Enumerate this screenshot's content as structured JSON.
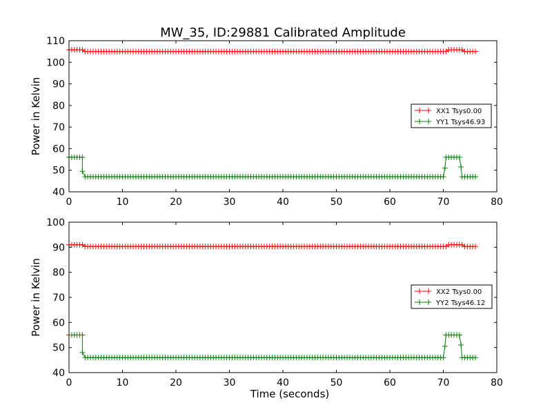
{
  "chart_data": [
    {
      "type": "line",
      "title": "MW_35, ID:29881 Calibrated Amplitude",
      "xlabel": "",
      "ylabel": "Power in Kelvin",
      "xlim": [
        0,
        80
      ],
      "ylim": [
        40,
        110
      ],
      "xticks": [
        "0",
        "10",
        "20",
        "30",
        "40",
        "50",
        "60",
        "70",
        "80"
      ],
      "yticks": [
        "40",
        "50",
        "60",
        "70",
        "80",
        "90",
        "100",
        "110"
      ],
      "grid": false,
      "legend_position": "center-right",
      "series": [
        {
          "name": "XX1 Tsys0.00",
          "color": "#ff0000",
          "marker": "plus",
          "segments": [
            {
              "x0": 0,
              "x1": 2.5,
              "y": 105.8
            },
            {
              "x0": 3.0,
              "x1": 70.5,
              "y": 105.0
            },
            {
              "x0": 71.0,
              "x1": 73.5,
              "y": 105.8
            },
            {
              "x0": 74.0,
              "x1": 76.0,
              "y": 105.0
            }
          ]
        },
        {
          "name": "YY1 Tsys46.93",
          "color": "#008000",
          "marker": "plus",
          "segments": [
            {
              "x0": 0,
              "x1": 2.5,
              "y": 56.0
            },
            {
              "x0": 3.0,
              "x1": 70.0,
              "y": 47.0
            },
            {
              "x0": 70.5,
              "x1": 73.0,
              "y": 56.0
            },
            {
              "x0": 73.5,
              "x1": 76.0,
              "y": 47.0
            }
          ],
          "transitions": [
            {
              "x": 2.5,
              "y": 49.5
            },
            {
              "x": 70.3,
              "y": 51.0
            },
            {
              "x": 73.3,
              "y": 51.5
            }
          ]
        }
      ]
    },
    {
      "type": "line",
      "title": "",
      "xlabel": "Time (seconds)",
      "ylabel": "Power in Kelvin",
      "xlim": [
        0,
        80
      ],
      "ylim": [
        40,
        100
      ],
      "xticks": [
        "0",
        "10",
        "20",
        "30",
        "40",
        "50",
        "60",
        "70",
        "80"
      ],
      "yticks": [
        "40",
        "50",
        "60",
        "70",
        "80",
        "90",
        "100"
      ],
      "grid": false,
      "legend_position": "center-right",
      "series": [
        {
          "name": "XX2 Tsys0.00",
          "color": "#ff0000",
          "marker": "plus",
          "segments": [
            {
              "x0": 0,
              "x1": 2.5,
              "y": 91.0
            },
            {
              "x0": 3.0,
              "x1": 70.5,
              "y": 90.3
            },
            {
              "x0": 71.0,
              "x1": 73.5,
              "y": 91.0
            },
            {
              "x0": 74.0,
              "x1": 76.0,
              "y": 90.3
            }
          ]
        },
        {
          "name": "YY2 Tsys46.12",
          "color": "#008000",
          "marker": "plus",
          "segments": [
            {
              "x0": 0,
              "x1": 2.5,
              "y": 55.0
            },
            {
              "x0": 3.0,
              "x1": 70.0,
              "y": 46.0
            },
            {
              "x0": 70.5,
              "x1": 73.0,
              "y": 55.0
            },
            {
              "x0": 73.5,
              "x1": 76.0,
              "y": 46.0
            }
          ],
          "transitions": [
            {
              "x": 2.5,
              "y": 48.0
            },
            {
              "x": 70.3,
              "y": 50.5
            },
            {
              "x": 73.3,
              "y": 51.0
            }
          ]
        }
      ]
    }
  ]
}
